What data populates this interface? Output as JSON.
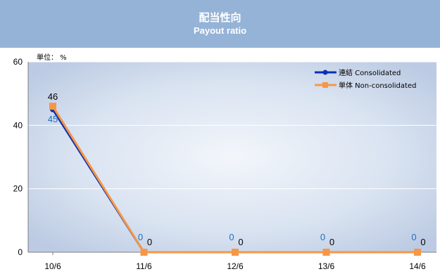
{
  "header": {
    "title_ja": "配当性向",
    "title_en": "Payout ratio"
  },
  "unit_label": "単位： %",
  "colors": {
    "consolidated": "#0b2fb0",
    "non_consolidated": "#f79646",
    "consolidated_label": "#1f6fc0",
    "non_consolidated_label": "#000000",
    "title_band": "#95b3d7"
  },
  "chart_data": {
    "type": "line",
    "title": "配当性向 Payout ratio",
    "xlabel": "",
    "ylabel": "単位： %",
    "x": [
      "10/6",
      "11/6",
      "12/6",
      "13/6",
      "14/6"
    ],
    "ylim": [
      0,
      60
    ],
    "yticks": [
      0,
      20,
      40,
      60
    ],
    "grid": true,
    "legend": "top-right",
    "series": [
      {
        "name": "連結 Consolidated",
        "values": [
          45,
          0,
          0,
          0,
          0
        ],
        "labels": [
          "45",
          "0",
          "0",
          "0",
          "0"
        ]
      },
      {
        "name": "単体 Non-consolidated",
        "values": [
          46,
          0,
          0,
          0,
          0
        ],
        "labels": [
          "46",
          "0",
          "0",
          "0",
          "0"
        ]
      }
    ]
  }
}
